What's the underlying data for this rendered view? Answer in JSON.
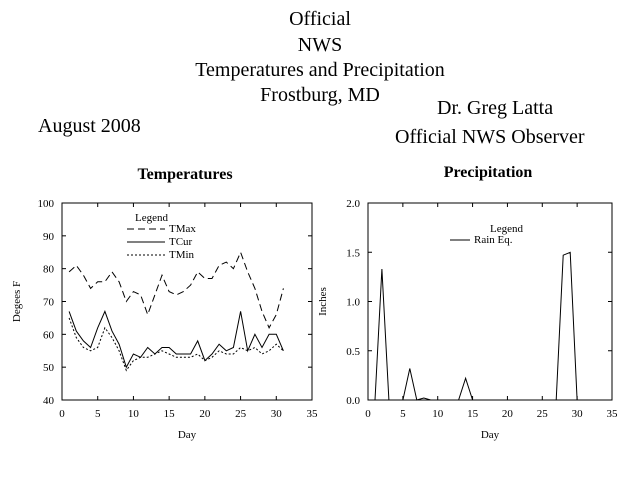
{
  "header": {
    "line1": "Official",
    "line2": "NWS",
    "line3": "Temperatures and Precipitation",
    "line4": "Frostburg, MD",
    "observer_name": "Dr. Greg Latta",
    "observer_title": "Official NWS Observer",
    "date": "August 2008"
  },
  "chart_data": [
    {
      "type": "line",
      "title": "Temperatures",
      "xlabel": "Day",
      "ylabel": "Degees F",
      "xlim": [
        0,
        35
      ],
      "ylim": [
        40,
        100
      ],
      "xticks": [
        0,
        5,
        10,
        15,
        20,
        25,
        30,
        35
      ],
      "yticks": [
        40,
        50,
        60,
        70,
        80,
        90,
        100
      ],
      "legend_title": "Legend",
      "legend_position": "top-left",
      "grid": false,
      "x": [
        1,
        2,
        3,
        4,
        5,
        6,
        7,
        8,
        9,
        10,
        11,
        12,
        13,
        14,
        15,
        16,
        17,
        18,
        19,
        20,
        21,
        22,
        23,
        24,
        25,
        26,
        27,
        28,
        29,
        30,
        31
      ],
      "series": [
        {
          "name": "TMax",
          "style": "dashed",
          "values": [
            79,
            81,
            78,
            74,
            76,
            76,
            79,
            76,
            70,
            73,
            72,
            66,
            72,
            78,
            73,
            72,
            73,
            75,
            79,
            77,
            77,
            81,
            82,
            80,
            85,
            79,
            74,
            67,
            62,
            66,
            74
          ]
        },
        {
          "name": "TCur",
          "style": "solid",
          "values": [
            67,
            61,
            58,
            56,
            62,
            67,
            61,
            57,
            50,
            54,
            53,
            56,
            54,
            56,
            56,
            54,
            54,
            54,
            58,
            52,
            54,
            57,
            55,
            56,
            67,
            55,
            60,
            56,
            60,
            60,
            55
          ]
        },
        {
          "name": "TMin",
          "style": "dotted",
          "values": [
            65,
            59,
            56,
            55,
            56,
            62,
            59,
            55,
            49,
            52,
            53,
            53,
            54,
            55,
            54,
            53,
            53,
            53,
            54,
            52,
            53,
            55,
            54,
            54,
            56,
            55,
            56,
            54,
            55,
            57,
            55
          ]
        }
      ]
    },
    {
      "type": "line",
      "title": "Precipitation",
      "xlabel": "Day",
      "ylabel": "Inches",
      "xlim": [
        0,
        35
      ],
      "ylim": [
        0,
        2.0
      ],
      "xticks": [
        0,
        5,
        10,
        15,
        20,
        25,
        30,
        35
      ],
      "yticks": [
        0.0,
        0.5,
        1.0,
        1.5,
        2.0
      ],
      "legend_title": "Legend",
      "legend_position": "top-center",
      "grid": false,
      "x": [
        1,
        2,
        3,
        4,
        5,
        6,
        7,
        8,
        9,
        10,
        11,
        12,
        13,
        14,
        15,
        16,
        17,
        18,
        19,
        20,
        21,
        22,
        23,
        24,
        25,
        26,
        27,
        28,
        29,
        30,
        31
      ],
      "series": [
        {
          "name": "Rain Eq.",
          "style": "solid",
          "values": [
            0,
            1.33,
            0,
            0,
            0,
            0.32,
            0,
            0.02,
            0,
            0,
            0,
            0,
            0,
            0.22,
            0,
            0,
            0,
            0,
            0,
            0,
            0,
            0,
            0,
            0,
            0,
            0,
            0,
            1.47,
            1.5,
            0,
            0
          ]
        }
      ]
    }
  ]
}
